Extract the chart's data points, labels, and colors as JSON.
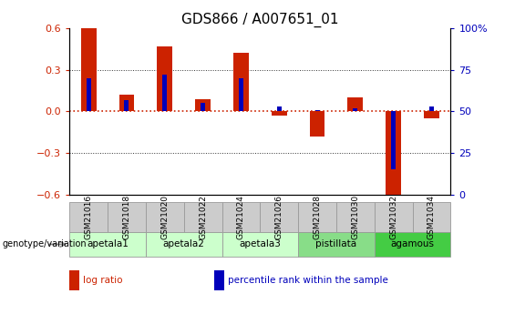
{
  "title": "GDS866 / A007651_01",
  "samples": [
    "GSM21016",
    "GSM21018",
    "GSM21020",
    "GSM21022",
    "GSM21024",
    "GSM21026",
    "GSM21028",
    "GSM21030",
    "GSM21032",
    "GSM21034"
  ],
  "log_ratio": [
    0.6,
    0.12,
    0.47,
    0.09,
    0.42,
    -0.03,
    -0.18,
    0.1,
    -0.62,
    -0.05
  ],
  "percentile_values": [
    70,
    57,
    72,
    55,
    70,
    53,
    51,
    52,
    15,
    53
  ],
  "ylim": [
    -0.6,
    0.6
  ],
  "y2lim": [
    0,
    100
  ],
  "yticks": [
    -0.6,
    -0.3,
    0.0,
    0.3,
    0.6
  ],
  "y2ticks": [
    0,
    25,
    50,
    75,
    100
  ],
  "y2ticklabels": [
    "0",
    "25",
    "50",
    "75",
    "100%"
  ],
  "groups": [
    {
      "label": "apetala1",
      "start": 0,
      "end": 2,
      "color": "#ccffcc"
    },
    {
      "label": "apetala2",
      "start": 2,
      "end": 4,
      "color": "#ccffcc"
    },
    {
      "label": "apetala3",
      "start": 4,
      "end": 6,
      "color": "#ccffcc"
    },
    {
      "label": "pistillata",
      "start": 6,
      "end": 8,
      "color": "#88dd88"
    },
    {
      "label": "agamous",
      "start": 8,
      "end": 10,
      "color": "#44cc44"
    }
  ],
  "bar_color_red": "#cc2200",
  "bar_color_blue": "#0000bb",
  "bar_width": 0.4,
  "blue_bar_width": 0.12,
  "zero_line_color": "#cc2200",
  "grid_color": "#333333",
  "title_fontsize": 11,
  "axis_tick_color_left": "#cc2200",
  "axis_tick_color_right": "#0000bb",
  "legend_items": [
    "log ratio",
    "percentile rank within the sample"
  ],
  "legend_colors": [
    "#cc2200",
    "#0000bb"
  ],
  "genotype_label": "genotype/variation",
  "sample_box_color": "#cccccc",
  "background_color": "#ffffff"
}
